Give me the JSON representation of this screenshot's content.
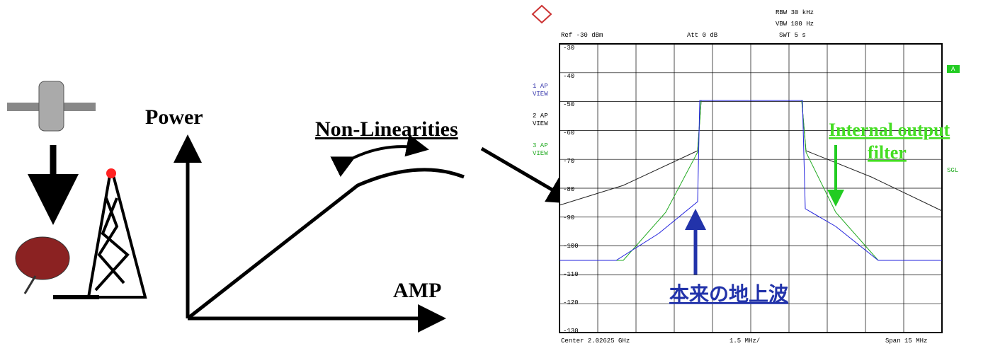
{
  "left": {
    "power": "Power",
    "amp": "AMP",
    "nonlin": "Non-Linearities"
  },
  "analyzer": {
    "ref": "Ref -30 dBm",
    "att": "Att  0 dB",
    "rbw": "RBW 30 kHz",
    "vbw": "VBW 100 Hz",
    "swt": "SWT 5 s",
    "traces": [
      "1 AP VIEW",
      "2 AP VIEW",
      "3 AP VIEW"
    ],
    "marker": "A",
    "sgl": "SGL",
    "levels": [
      "-30",
      "-40",
      "-50",
      "-60",
      "-70",
      "-80",
      "-90",
      "-100",
      "-110",
      "-120",
      "-130"
    ],
    "center": "Center 2.02625 GHz",
    "div": "1.5 MHz/",
    "span": "Span 15 MHz"
  },
  "annotations": {
    "filter": "Internal output filter",
    "terrestrial": "本来の地上波"
  }
}
